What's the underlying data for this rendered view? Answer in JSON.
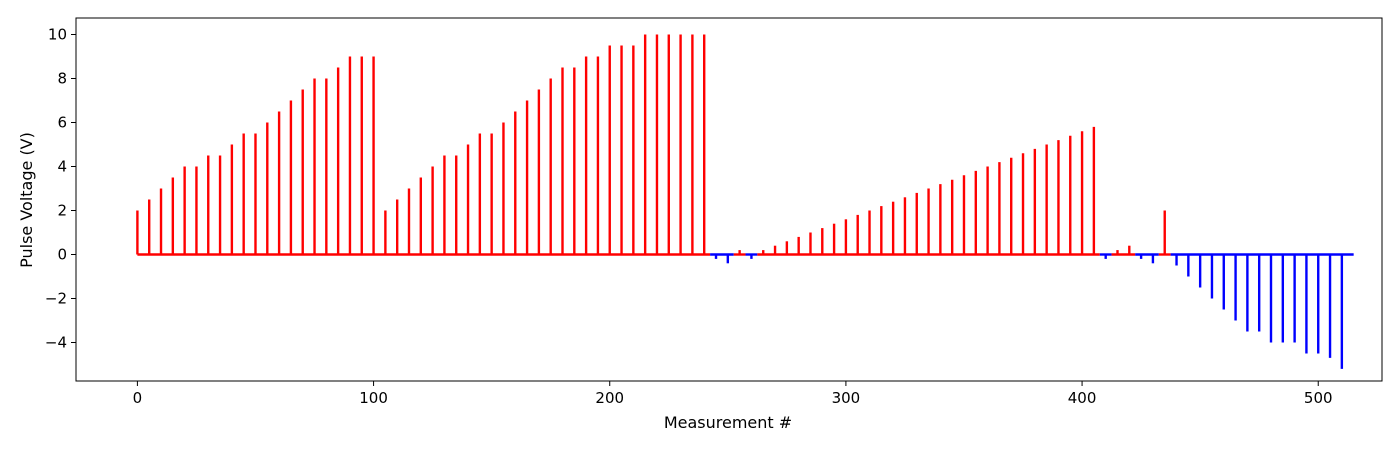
{
  "chart_data": {
    "type": "bar",
    "title": "",
    "xlabel": "Measurement #",
    "ylabel": "Pulse Voltage (V)",
    "xlim": [
      -26,
      527
    ],
    "ylim": [
      -5.75,
      10.75
    ],
    "x_ticks": [
      0,
      100,
      200,
      300,
      400,
      500
    ],
    "x_tick_labels": [
      "0",
      "100",
      "200",
      "300",
      "400",
      "500"
    ],
    "y_ticks": [
      -4,
      -2,
      0,
      2,
      4,
      6,
      8,
      10
    ],
    "y_tick_labels": [
      "−4",
      "−2",
      "0",
      "2",
      "4",
      "6",
      "8",
      "10"
    ],
    "grid": false,
    "colors": {
      "positive": "#ff0000",
      "negative": "#0000ff",
      "axes": "#000000"
    },
    "baseline": {
      "start": 0,
      "end": 515,
      "value": 0
    },
    "series": [
      {
        "color": "#ff0000",
        "points": [
          [
            0,
            2.0
          ],
          [
            5,
            2.5
          ],
          [
            10,
            3.0
          ],
          [
            15,
            3.5
          ],
          [
            20,
            4.0
          ],
          [
            25,
            4.0
          ],
          [
            30,
            4.5
          ],
          [
            35,
            4.5
          ],
          [
            40,
            5.0
          ],
          [
            45,
            5.5
          ],
          [
            50,
            5.5
          ],
          [
            55,
            6.0
          ],
          [
            60,
            6.5
          ],
          [
            65,
            7.0
          ],
          [
            70,
            7.5
          ],
          [
            75,
            8.0
          ],
          [
            80,
            8.0
          ],
          [
            85,
            8.5
          ],
          [
            90,
            9.0
          ],
          [
            95,
            9.0
          ],
          [
            100,
            9.0
          ],
          [
            105,
            2.0
          ],
          [
            110,
            2.5
          ],
          [
            115,
            3.0
          ],
          [
            120,
            3.5
          ],
          [
            125,
            4.0
          ],
          [
            130,
            4.5
          ],
          [
            135,
            4.5
          ],
          [
            140,
            5.0
          ],
          [
            145,
            5.5
          ],
          [
            150,
            5.5
          ],
          [
            155,
            6.0
          ],
          [
            160,
            6.5
          ],
          [
            165,
            7.0
          ],
          [
            170,
            7.5
          ],
          [
            175,
            8.0
          ],
          [
            180,
            8.5
          ],
          [
            185,
            8.5
          ],
          [
            190,
            9.0
          ],
          [
            195,
            9.0
          ],
          [
            200,
            9.5
          ],
          [
            205,
            9.5
          ],
          [
            210,
            9.5
          ],
          [
            215,
            10.0
          ],
          [
            220,
            10.0
          ],
          [
            225,
            10.0
          ],
          [
            230,
            10.0
          ],
          [
            235,
            10.0
          ],
          [
            240,
            10.0
          ],
          [
            255,
            0.2
          ],
          [
            265,
            0.2
          ],
          [
            270,
            0.4
          ],
          [
            275,
            0.6
          ],
          [
            280,
            0.8
          ],
          [
            285,
            1.0
          ],
          [
            290,
            1.2
          ],
          [
            295,
            1.4
          ],
          [
            300,
            1.6
          ],
          [
            305,
            1.8
          ],
          [
            310,
            2.0
          ],
          [
            315,
            2.2
          ],
          [
            320,
            2.4
          ],
          [
            325,
            2.6
          ],
          [
            330,
            2.8
          ],
          [
            335,
            3.0
          ],
          [
            340,
            3.2
          ],
          [
            345,
            3.4
          ],
          [
            350,
            3.6
          ],
          [
            355,
            3.8
          ],
          [
            360,
            4.0
          ],
          [
            365,
            4.2
          ],
          [
            370,
            4.4
          ],
          [
            375,
            4.6
          ],
          [
            380,
            4.8
          ],
          [
            385,
            5.0
          ],
          [
            390,
            5.2
          ],
          [
            395,
            5.4
          ],
          [
            400,
            5.6
          ],
          [
            405,
            5.8
          ],
          [
            415,
            0.2
          ],
          [
            420,
            0.4
          ],
          [
            435,
            2.0
          ]
        ]
      },
      {
        "color": "#0000ff",
        "points": [
          [
            245,
            -0.2
          ],
          [
            250,
            -0.4
          ],
          [
            260,
            -0.2
          ],
          [
            410,
            -0.2
          ],
          [
            425,
            -0.2
          ],
          [
            430,
            -0.4
          ],
          [
            440,
            -0.5
          ],
          [
            445,
            -1.0
          ],
          [
            450,
            -1.5
          ],
          [
            455,
            -2.0
          ],
          [
            460,
            -2.5
          ],
          [
            465,
            -3.0
          ],
          [
            470,
            -3.5
          ],
          [
            475,
            -3.5
          ],
          [
            480,
            -4.0
          ],
          [
            485,
            -4.0
          ],
          [
            490,
            -4.0
          ],
          [
            495,
            -4.5
          ],
          [
            500,
            -4.5
          ],
          [
            505,
            -4.7
          ],
          [
            510,
            -5.2
          ]
        ]
      }
    ]
  }
}
